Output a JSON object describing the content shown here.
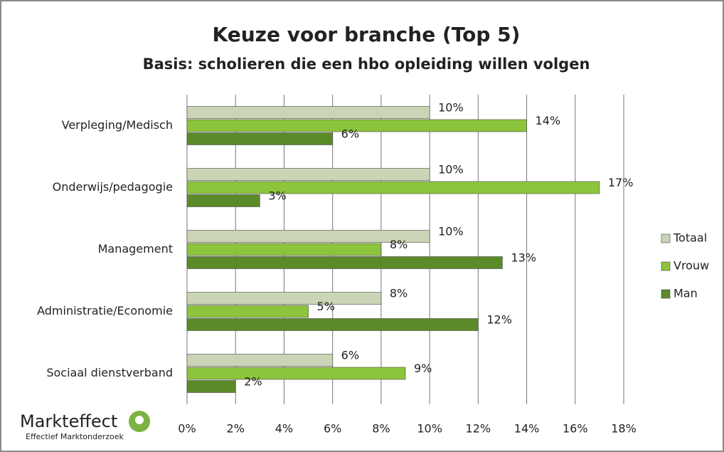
{
  "chart_data": {
    "type": "barh",
    "title": "Keuze voor branche (Top 5)",
    "subtitle": "Basis: scholieren die een hbo opleiding willen volgen",
    "categories": [
      "Verpleging/Medisch",
      "Onderwijs/pedagogie",
      "Management",
      "Administratie/Economie",
      "Sociaal dienstverband"
    ],
    "series": [
      {
        "name": "Totaal",
        "color": "#c9d5b4",
        "values": [
          10,
          10,
          10,
          8,
          6
        ],
        "value_labels": [
          "10%",
          "10%",
          "10%",
          "8%",
          "6%"
        ]
      },
      {
        "name": "Vrouw",
        "color": "#8cc43c",
        "values": [
          14,
          17,
          8,
          5,
          9
        ],
        "value_labels": [
          "14%",
          "17%",
          "8%",
          "5%",
          "9%"
        ]
      },
      {
        "name": "Man",
        "color": "#5b8a28",
        "values": [
          6,
          3,
          13,
          12,
          2
        ],
        "value_labels": [
          "6%",
          "3%",
          "13%",
          "12%",
          "2%"
        ]
      }
    ],
    "xlim": [
      0,
      18
    ],
    "xticks": [
      {
        "value": 0,
        "label": "0%"
      },
      {
        "value": 2,
        "label": "2%"
      },
      {
        "value": 4,
        "label": "4%"
      },
      {
        "value": 6,
        "label": "6%"
      },
      {
        "value": 8,
        "label": "8%"
      },
      {
        "value": 10,
        "label": "10%"
      },
      {
        "value": 12,
        "label": "12%"
      },
      {
        "value": 14,
        "label": "14%"
      },
      {
        "value": 16,
        "label": "16%"
      },
      {
        "value": 18,
        "label": "18%"
      }
    ],
    "grid": true,
    "legend": "right",
    "logo": {
      "name": "Markteffect",
      "tagline": "Effectief Marktonderzoek"
    }
  }
}
